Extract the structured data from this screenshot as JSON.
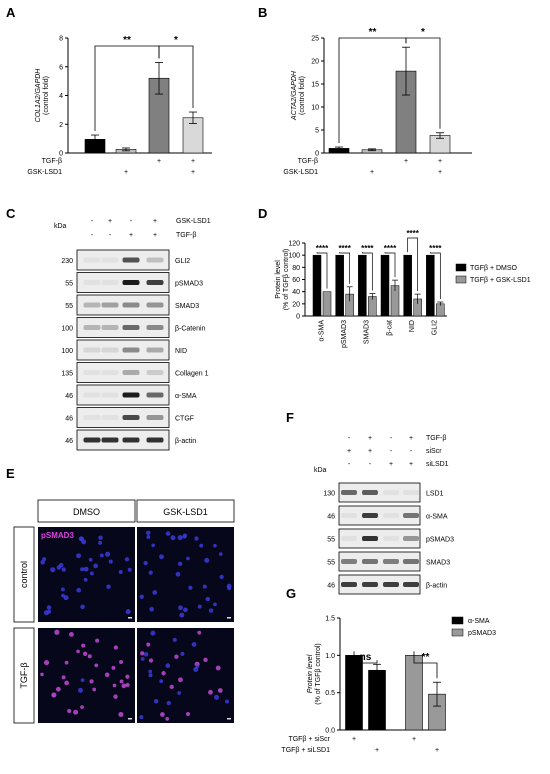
{
  "panels": {
    "A": {
      "letter": "A",
      "chart_data": {
        "type": "bar",
        "ylabel": "COL1A2/GAPDH",
        "ylabel2": "(control fold)",
        "yticks": [
          0,
          2,
          4,
          6,
          8
        ],
        "ylim": [
          0,
          8
        ],
        "values": [
          0.95,
          0.25,
          5.2,
          2.45
        ],
        "errors": [
          0.3,
          0.1,
          1.1,
          0.4
        ],
        "colors": [
          "#000000",
          "#bfbfbf",
          "#808080",
          "#d9d9d9"
        ],
        "conditions": [
          {
            "label": "TGF-β",
            "marks": [
              "",
              "",
              "+",
              "+"
            ]
          },
          {
            "label": "GSK-LSD1",
            "marks": [
              "",
              "+",
              "",
              "+"
            ]
          }
        ],
        "sig": [
          {
            "from": 0,
            "to": 2,
            "text": "**"
          },
          {
            "from": 2,
            "to": 3,
            "text": "*"
          }
        ]
      }
    },
    "B": {
      "letter": "B",
      "chart_data": {
        "type": "bar",
        "ylabel": "ACTA2/GAPDH",
        "ylabel2": "(control fold)",
        "yticks": [
          0,
          5,
          10,
          15,
          20,
          25
        ],
        "ylim": [
          0,
          25
        ],
        "values": [
          1.0,
          0.7,
          17.8,
          3.8
        ],
        "errors": [
          0.3,
          0.2,
          5.2,
          0.6
        ],
        "colors": [
          "#000000",
          "#bfbfbf",
          "#808080",
          "#d9d9d9"
        ],
        "conditions": [
          {
            "label": "TGF-β",
            "marks": [
              "",
              "",
              "+",
              "+"
            ]
          },
          {
            "label": "GSK-LSD1",
            "marks": [
              "",
              "+",
              "",
              "+"
            ]
          }
        ],
        "sig": [
          {
            "from": 0,
            "to": 2,
            "text": "**"
          },
          {
            "from": 2,
            "to": 3,
            "text": "*"
          }
        ]
      }
    },
    "C": {
      "letter": "C",
      "kda_label": "kDa",
      "conditions": [
        {
          "label": "GSK-LSD1",
          "marks": [
            "-",
            "+",
            "-",
            "+"
          ]
        },
        {
          "label": "TGF-β",
          "marks": [
            "-",
            "-",
            "+",
            "+"
          ]
        }
      ],
      "bands": [
        {
          "name": "GLI2",
          "kda": "230"
        },
        {
          "name": "pSMAD3",
          "kda": "55"
        },
        {
          "name": "SMAD3",
          "kda": "55"
        },
        {
          "name": "β-Catenin",
          "kda": "100"
        },
        {
          "name": "NID",
          "kda": "100"
        },
        {
          "name": "Collagen 1",
          "kda": "135"
        },
        {
          "name": "α-SMA",
          "kda": "46"
        },
        {
          "name": "CTGF",
          "kda": "46"
        },
        {
          "name": "β-actin",
          "kda": "46"
        }
      ]
    },
    "D": {
      "letter": "D",
      "chart_data": {
        "type": "bar",
        "ylabel": "Protein level",
        "ylabel2": "(% of TGFβ control)",
        "yticks": [
          0,
          20,
          40,
          60,
          80,
          100,
          120
        ],
        "ylim": [
          0,
          120
        ],
        "categories": [
          "α-SMA",
          "pSMAD3",
          "SMAD3",
          "β-cat",
          "NID",
          "GLI2"
        ],
        "series": [
          {
            "name": "TGFβ + DMSO",
            "color": "#000000",
            "values": [
              100,
              100,
              100,
              100,
              100,
              100
            ],
            "errors": [
              0,
              0,
              0,
              0,
              0,
              0
            ]
          },
          {
            "name": "TGFβ + GSK-LSD1",
            "color": "#999999",
            "values": [
              40,
              36,
              32,
              50,
              28,
              20
            ],
            "errors": [
              0,
              12,
              5,
              9,
              8,
              3
            ]
          }
        ],
        "sig_text": "****"
      }
    },
    "E": {
      "letter": "E",
      "col_labels": [
        "DMSO",
        "GSK-LSD1"
      ],
      "row_labels": [
        "control",
        "TGF-β"
      ],
      "overlay_label": "pSMAD3"
    },
    "F": {
      "letter": "F",
      "kda_label": "kDa",
      "conditions": [
        {
          "label": "TGF-β",
          "marks": [
            "-",
            "+",
            "-",
            "+"
          ]
        },
        {
          "label": "siScr",
          "marks": [
            "+",
            "+",
            "-",
            "-"
          ]
        },
        {
          "label": "siLSD1",
          "marks": [
            "-",
            "-",
            "+",
            "+"
          ]
        }
      ],
      "bands": [
        {
          "name": "LSD1",
          "kda": "130"
        },
        {
          "name": "α-SMA",
          "kda": "46"
        },
        {
          "name": "pSMAD3",
          "kda": "55"
        },
        {
          "name": "SMAD3",
          "kda": "55"
        },
        {
          "name": "β-actin",
          "kda": "46"
        }
      ]
    },
    "G": {
      "letter": "G",
      "chart_data": {
        "type": "bar",
        "ylabel": "Protein level",
        "ylabel2": "(% of TGFβ control)",
        "yticks": [
          0.0,
          0.5,
          1.0,
          1.5
        ],
        "ylim": [
          0,
          1.5
        ],
        "values": [
          1.0,
          0.8,
          1.0,
          0.48
        ],
        "errors": [
          0,
          0.08,
          0,
          0.16
        ],
        "colors": [
          "#000000",
          "#000000",
          "#999999",
          "#999999"
        ],
        "legend": [
          {
            "name": "α-SMA",
            "color": "#000000"
          },
          {
            "name": "pSMAD3",
            "color": "#999999"
          }
        ],
        "conditions": [
          {
            "label": "TGFβ + siScr",
            "marks": [
              "+",
              "",
              "+",
              ""
            ]
          },
          {
            "label": "TGFβ + siLSD1",
            "marks": [
              "",
              "+",
              "",
              "+"
            ]
          }
        ],
        "sig": [
          {
            "from": 0,
            "to": 1,
            "text": "ns"
          },
          {
            "from": 2,
            "to": 3,
            "text": "**"
          }
        ]
      }
    }
  }
}
